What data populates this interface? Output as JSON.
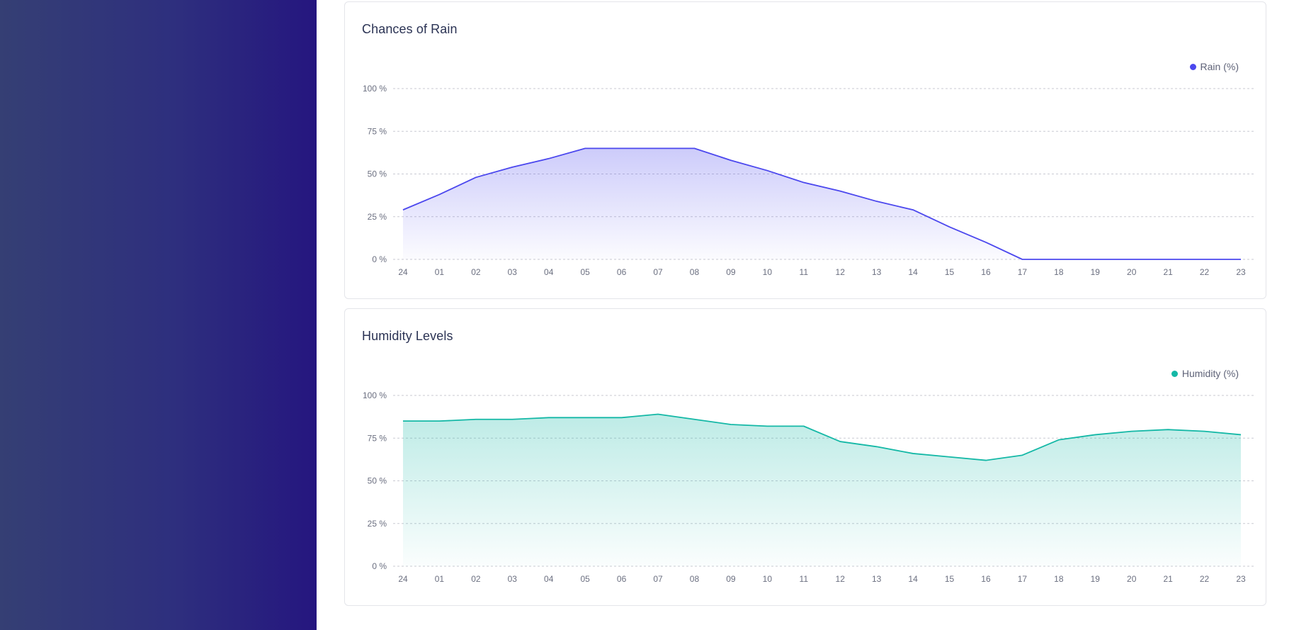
{
  "sidebar": {},
  "charts": [
    {
      "title": "Chances of Rain",
      "legend": "Rain (%)",
      "color": "#4b47ee"
    },
    {
      "title": "Humidity Levels",
      "legend": "Humidity (%)",
      "color": "#14b8a6"
    }
  ],
  "chart_data": [
    {
      "type": "area",
      "title": "Chances of Rain",
      "xlabel": "",
      "ylabel": "",
      "categories": [
        "24",
        "01",
        "02",
        "03",
        "04",
        "05",
        "06",
        "07",
        "08",
        "09",
        "10",
        "11",
        "12",
        "13",
        "14",
        "15",
        "16",
        "17",
        "18",
        "19",
        "20",
        "21",
        "22",
        "23"
      ],
      "series": [
        {
          "name": "Rain (%)",
          "values": [
            29,
            38,
            48,
            54,
            59,
            65,
            65,
            65,
            65,
            58,
            52,
            45,
            40,
            34,
            29,
            19,
            10,
            0,
            0,
            0,
            0,
            0,
            0,
            0
          ]
        }
      ],
      "ylim": [
        0,
        100
      ],
      "yticks": [
        "0 %",
        "25 %",
        "50 %",
        "75 %",
        "100 %"
      ],
      "grid": true,
      "legend_position": "top-right",
      "color": "#4b47ee"
    },
    {
      "type": "area",
      "title": "Humidity Levels",
      "xlabel": "",
      "ylabel": "",
      "categories": [
        "24",
        "01",
        "02",
        "03",
        "04",
        "05",
        "06",
        "07",
        "08",
        "09",
        "10",
        "11",
        "12",
        "13",
        "14",
        "15",
        "16",
        "17",
        "18",
        "19",
        "20",
        "21",
        "22",
        "23"
      ],
      "series": [
        {
          "name": "Humidity (%)",
          "values": [
            85,
            85,
            86,
            86,
            87,
            87,
            87,
            89,
            86,
            83,
            82,
            82,
            73,
            70,
            66,
            64,
            62,
            65,
            74,
            77,
            79,
            80,
            79,
            77
          ]
        }
      ],
      "ylim": [
        0,
        100
      ],
      "yticks": [
        "0 %",
        "25 %",
        "50 %",
        "75 %",
        "100 %"
      ],
      "grid": true,
      "legend_position": "top-right",
      "color": "#14b8a6"
    }
  ]
}
